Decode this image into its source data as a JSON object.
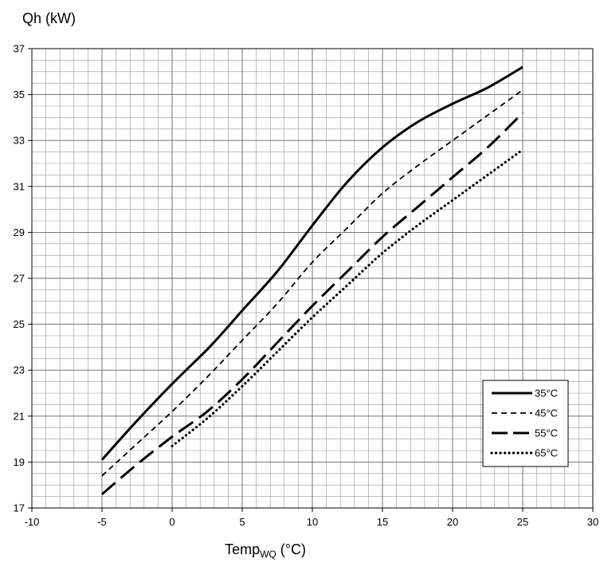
{
  "chart_data": {
    "type": "line",
    "title": "",
    "ylabel": "Qh (kW)",
    "xlabel": {
      "main": "Temp",
      "subscript": "WQ",
      "unit": " (°C)"
    },
    "xlim": [
      -10,
      30
    ],
    "ylim": [
      17,
      37
    ],
    "x_major_ticks": [
      -10,
      -5,
      0,
      5,
      10,
      15,
      20,
      25,
      30
    ],
    "y_major_ticks": [
      17,
      19,
      21,
      23,
      25,
      27,
      29,
      31,
      33,
      35,
      37
    ],
    "x_minor_step": 1,
    "y_minor_step": 0.5,
    "grid": true,
    "legend_position": "bottom-right",
    "series": [
      {
        "name": "35°C",
        "style": "solid",
        "x": [
          -5,
          -2.5,
          0,
          2.5,
          4,
          5,
          7.5,
          10,
          12.5,
          15,
          17.5,
          20,
          22.5,
          25
        ],
        "y": [
          19.1,
          20.8,
          22.4,
          23.9,
          24.9,
          25.6,
          27.3,
          29.3,
          31.2,
          32.7,
          33.8,
          34.6,
          35.3,
          36.2
        ]
      },
      {
        "name": "45°C",
        "style": "short-dash",
        "x": [
          -5,
          -2.5,
          0,
          2.5,
          5,
          7.5,
          10,
          12.5,
          15,
          17.5,
          20,
          22.5,
          25
        ],
        "y": [
          18.4,
          19.8,
          21.2,
          22.7,
          24.3,
          25.9,
          27.7,
          29.2,
          30.7,
          31.9,
          33.0,
          34.1,
          35.2
        ]
      },
      {
        "name": "55°C",
        "style": "long-dash",
        "x": [
          -5,
          -2.5,
          0,
          2.5,
          5,
          7.5,
          10,
          12.5,
          15,
          17.5,
          20,
          22.5,
          25
        ],
        "y": [
          17.6,
          18.9,
          20.1,
          21.2,
          22.6,
          24.2,
          25.8,
          27.3,
          28.8,
          30.1,
          31.4,
          32.7,
          34.2
        ]
      },
      {
        "name": "65°C",
        "style": "dotted",
        "x": [
          0,
          2.5,
          5,
          7.5,
          10,
          12.5,
          15,
          17.5,
          20,
          22.5,
          25
        ],
        "y": [
          19.7,
          20.9,
          22.3,
          23.8,
          25.3,
          26.7,
          28.1,
          29.3,
          30.4,
          31.5,
          32.6
        ]
      }
    ]
  }
}
